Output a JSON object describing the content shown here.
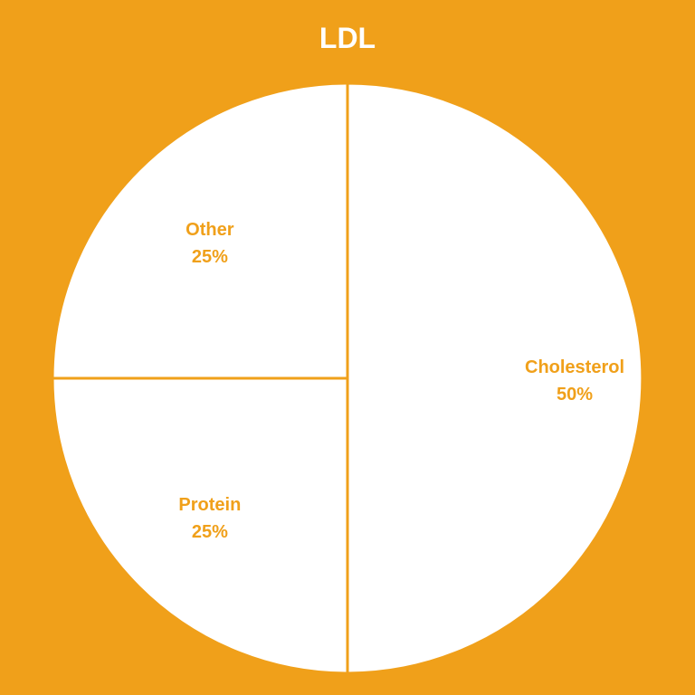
{
  "chart_data": {
    "type": "pie",
    "title": "LDL",
    "slices": [
      {
        "label": "Cholesterol",
        "value": 50,
        "display": "50%"
      },
      {
        "label": "Protein",
        "value": 25,
        "display": "25%"
      },
      {
        "label": "Other",
        "value": 25,
        "display": "25%"
      }
    ],
    "start_angle_deg": 0,
    "direction": "clockwise",
    "legend": "none",
    "data_labels": "inside"
  },
  "colors": {
    "background": "#F0A01A",
    "slice_fill": "#FFFFFF",
    "slice_border": "#F0A01A",
    "label_text": "#F0A01A",
    "title_text": "#FFFFFF"
  }
}
